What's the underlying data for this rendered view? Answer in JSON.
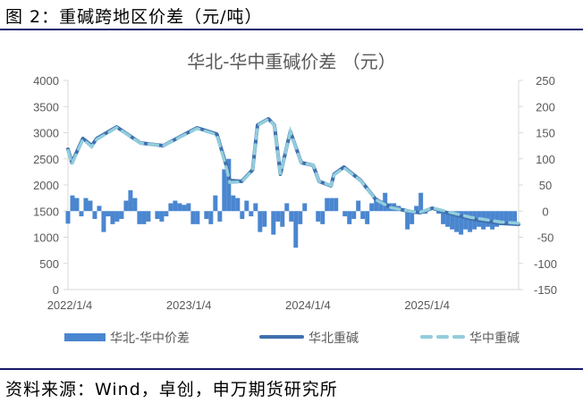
{
  "figure_title": "图 2：重碱跨地区价差（元/吨）",
  "source": "资料来源：Wind，卓创，申万期货研究所",
  "chart_data": {
    "type": "bar+line",
    "title": "华北-华中重碱价差 （元）",
    "x_unit": "months since 2022/1/4",
    "x_tick_labels": [
      "2022/1/4",
      "2023/1/4",
      "2024/1/4",
      "2025/1/4"
    ],
    "x_tick_months": [
      0,
      12,
      24,
      36
    ],
    "x_range_months": [
      0,
      45.4
    ],
    "y_left": {
      "range": [
        0,
        4000
      ],
      "ticks": [
        0,
        500,
        1000,
        1500,
        2000,
        2500,
        3000,
        3500,
        4000
      ]
    },
    "y_right": {
      "range": [
        -150,
        250
      ],
      "ticks": [
        -150,
        -100,
        -50,
        0,
        50,
        100,
        150,
        200,
        250
      ]
    },
    "legend_position": "bottom",
    "colors": {
      "spread": "#4a86d0",
      "north": "#3f6fae",
      "central": "#92cddc"
    },
    "series": [
      {
        "name": "华北-华中价差",
        "type": "bar",
        "axis": "right",
        "start_month": 0,
        "step_months": 0.45,
        "values": [
          -24,
          30,
          25,
          -10,
          25,
          20,
          -15,
          10,
          -40,
          -10,
          -25,
          -20,
          -15,
          20,
          40,
          25,
          -25,
          -25,
          -20,
          0,
          -15,
          -20,
          -10,
          15,
          20,
          15,
          12,
          15,
          -25,
          -25,
          0,
          -15,
          -25,
          30,
          -20,
          80,
          100,
          30,
          25,
          -15,
          20,
          -10,
          15,
          -40,
          -30,
          0,
          -45,
          -20,
          -30,
          15,
          -20,
          -70,
          -25,
          15,
          0,
          0,
          -20,
          -25,
          25,
          25,
          25,
          0,
          -10,
          -25,
          -15,
          20,
          -15,
          -25,
          15,
          25,
          20,
          35,
          15,
          15,
          10,
          5,
          -35,
          -25,
          10,
          35,
          -5,
          0,
          0,
          -5,
          -25,
          -30,
          -35,
          -40,
          -45,
          -35,
          -40,
          -35,
          -30,
          -35,
          -30,
          -35,
          -30,
          -25,
          -25,
          -25,
          -20
        ]
      },
      {
        "name": "华北重碱",
        "type": "line",
        "axis": "left",
        "x": [
          0,
          0.4,
          1.5,
          2.4,
          2.9,
          4.9,
          7.3,
          9.6,
          13,
          15,
          16,
          16.3,
          17.5,
          18.6,
          19.1,
          20.2,
          20.8,
          21.4,
          22.4,
          23.5,
          24.7,
          25.3,
          26.5,
          26.8,
          27.8,
          29.5,
          31,
          32.5,
          34.6,
          35.5,
          36.7,
          38.2,
          40.6,
          43.6,
          45.4
        ],
        "y": [
          2684,
          2427,
          2889,
          2752,
          2889,
          3111,
          2803,
          2752,
          3094,
          2974,
          2342,
          2085,
          2068,
          2290,
          3145,
          3265,
          3145,
          2205,
          3025,
          2427,
          2376,
          2068,
          1983,
          2205,
          2342,
          2085,
          1726,
          1573,
          1487,
          1470,
          1556,
          1470,
          1350,
          1265,
          1248
        ]
      },
      {
        "name": "华中重碱",
        "type": "line",
        "axis": "left",
        "x": [
          0,
          0.4,
          1.5,
          2.4,
          2.9,
          4.9,
          7.3,
          9.6,
          13,
          15,
          16,
          16.3,
          17.5,
          18.6,
          19.1,
          20.2,
          20.8,
          21.4,
          22.4,
          23.5,
          24.7,
          25.3,
          26.5,
          26.8,
          27.8,
          29.5,
          31,
          32.5,
          34.6,
          35.5,
          36.7,
          38.2,
          40.6,
          43.6,
          45.4
        ],
        "y": [
          2660,
          2400,
          2870,
          2730,
          2870,
          3100,
          2800,
          2750,
          3080,
          2960,
          2300,
          2050,
          2060,
          2280,
          3140,
          3260,
          3140,
          2200,
          3020,
          2420,
          2380,
          2070,
          1990,
          2190,
          2330,
          2080,
          1720,
          1570,
          1490,
          1480,
          1560,
          1490,
          1380,
          1290,
          1270
        ]
      }
    ]
  }
}
